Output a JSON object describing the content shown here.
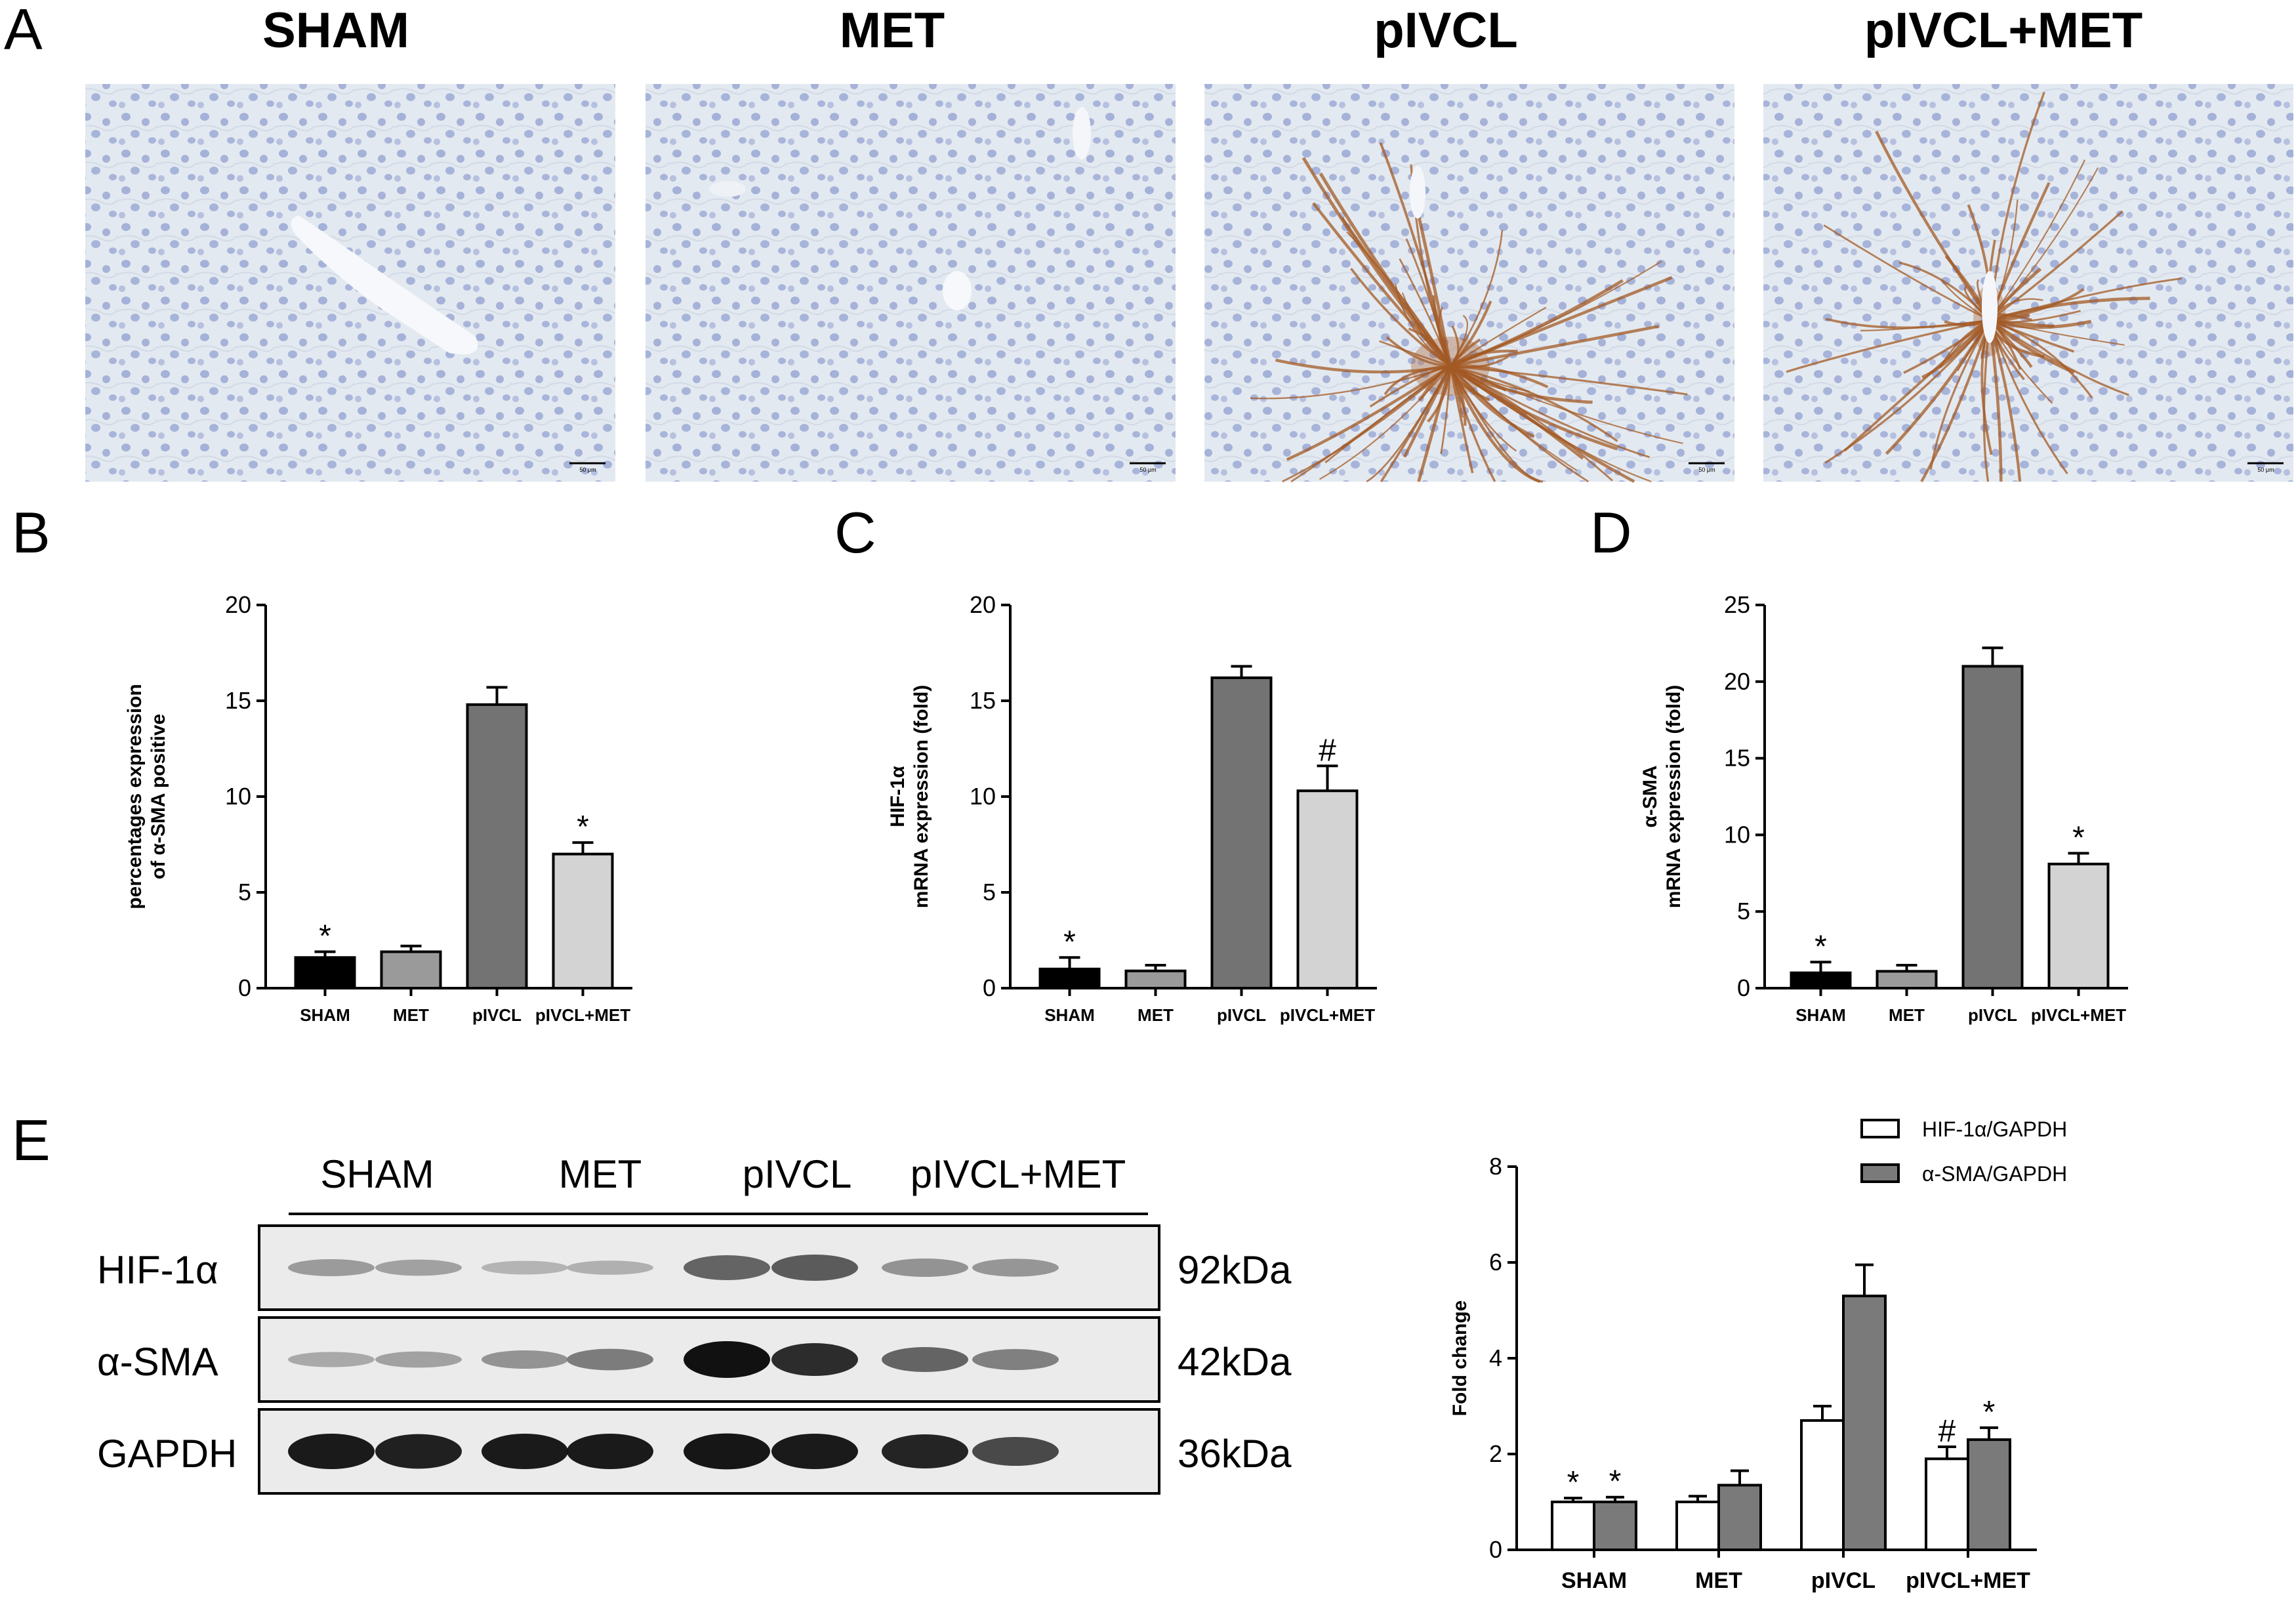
{
  "panel_letters": [
    "A",
    "B",
    "C",
    "D",
    "E"
  ],
  "panel_a": {
    "titles": [
      "SHAM",
      "MET",
      "pIVCL",
      "pIVCL+MET"
    ],
    "scale_bar_label": "50 μm"
  },
  "panel_e_blot": {
    "groups": [
      "SHAM",
      "MET",
      "pIVCL",
      "pIVCL+MET"
    ],
    "rows": [
      {
        "label": "HIF-1α",
        "kda": "92kDa",
        "intensities": [
          0.25,
          0.22,
          0.12,
          0.14,
          0.55,
          0.6,
          0.3,
          0.28
        ]
      },
      {
        "label": "α-SMA",
        "kda": "42kDa",
        "intensities": [
          0.18,
          0.22,
          0.3,
          0.42,
          1.0,
          0.85,
          0.55,
          0.4
        ]
      },
      {
        "label": "GAPDH",
        "kda": "36kDa",
        "intensities": [
          0.95,
          0.92,
          0.95,
          0.95,
          0.97,
          0.95,
          0.9,
          0.7
        ]
      }
    ]
  },
  "colors": {
    "sham": "#000000",
    "met": "#9a9a9a",
    "pivcl": "#737373",
    "pivcl_met": "#d3d3d3",
    "white_bar": "#ffffff",
    "grey_bar": "#7a7a7a",
    "tissue": "#dfe6ee",
    "stain": "#a35a24"
  },
  "chart_data": [
    {
      "panel": "B",
      "type": "bar",
      "categories": [
        "SHAM",
        "MET",
        "pIVCL",
        "pIVCL+MET"
      ],
      "values": [
        1.6,
        1.9,
        14.8,
        7.0
      ],
      "errors": [
        0.3,
        0.3,
        0.9,
        0.6
      ],
      "annotations": [
        "*",
        "",
        "",
        "*"
      ],
      "ylabel_lines": [
        "percentages expression",
        "of α-SMA positive"
      ],
      "ylim": [
        0,
        20
      ],
      "yticks": [
        0,
        5,
        10,
        15,
        20
      ]
    },
    {
      "panel": "C",
      "type": "bar",
      "categories": [
        "SHAM",
        "MET",
        "pIVCL",
        "pIVCL+MET"
      ],
      "values": [
        1.0,
        0.9,
        16.2,
        10.3
      ],
      "errors": [
        0.6,
        0.3,
        0.6,
        1.3
      ],
      "annotations": [
        "*",
        "",
        "",
        "#"
      ],
      "ylabel_lines": [
        "HIF-1α",
        "mRNA expression (fold)"
      ],
      "ylim": [
        0,
        20
      ],
      "yticks": [
        0,
        5,
        10,
        15,
        20
      ]
    },
    {
      "panel": "D",
      "type": "bar",
      "categories": [
        "SHAM",
        "MET",
        "pIVCL",
        "pIVCL+MET"
      ],
      "values": [
        1.0,
        1.1,
        21.0,
        8.1
      ],
      "errors": [
        0.7,
        0.4,
        1.2,
        0.7
      ],
      "annotations": [
        "*",
        "",
        "",
        "*"
      ],
      "ylabel_lines": [
        "α-SMA",
        "mRNA expression (fold)"
      ],
      "ylim": [
        0,
        25
      ],
      "yticks": [
        0,
        5,
        10,
        15,
        20,
        25
      ]
    },
    {
      "panel": "E",
      "type": "bar",
      "categories": [
        "SHAM",
        "MET",
        "pIVCL",
        "pIVCL+MET"
      ],
      "series": [
        {
          "name": "HIF-1α/GAPDH",
          "values": [
            1.0,
            1.0,
            2.7,
            1.9
          ],
          "errors": [
            0.08,
            0.12,
            0.3,
            0.25
          ],
          "annotations": [
            "*",
            "",
            "",
            "#"
          ]
        },
        {
          "name": "α-SMA/GAPDH",
          "values": [
            1.0,
            1.35,
            5.3,
            2.3
          ],
          "errors": [
            0.1,
            0.3,
            0.65,
            0.25
          ],
          "annotations": [
            "*",
            "",
            "",
            "*"
          ]
        }
      ],
      "ylabel": "Fold change",
      "ylim": [
        0,
        8
      ],
      "yticks": [
        0,
        2,
        4,
        6,
        8
      ],
      "legend": "top-right"
    }
  ]
}
